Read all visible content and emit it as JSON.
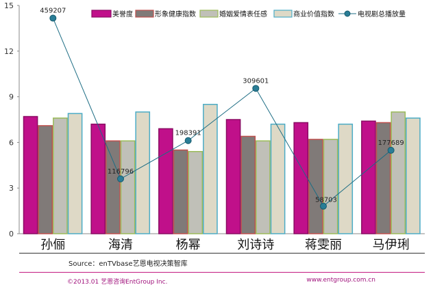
{
  "chart_data": {
    "type": "bar",
    "categories": [
      "孙俪",
      "海清",
      "杨幂",
      "刘诗诗",
      "蒋雯丽",
      "马伊琍"
    ],
    "ylim": [
      0,
      15
    ],
    "yticks": [
      "0",
      "3",
      "6",
      "9",
      "12",
      "15"
    ],
    "grid": false,
    "legend_position": "top",
    "series": [
      {
        "name": "美誉度",
        "color": "#c0108a",
        "values": [
          7.7,
          7.2,
          6.9,
          7.5,
          7.3,
          7.4
        ]
      },
      {
        "name": "形象健康指数",
        "color": "#807a78",
        "values": [
          7.1,
          6.1,
          5.5,
          6.4,
          6.2,
          7.3
        ]
      },
      {
        "name": "婚姻爱情表任感",
        "color": "#c0c0b8",
        "values": [
          7.6,
          6.1,
          5.4,
          6.1,
          6.2,
          8.0
        ]
      },
      {
        "name": "商业价值指数",
        "color": "#ded9c6",
        "values": [
          7.9,
          8.0,
          8.5,
          7.2,
          7.2,
          7.6
        ]
      }
    ],
    "line_series": {
      "name": "电视剧总播放量",
      "color": "#1d6d84",
      "values": [
        459207,
        116796,
        198391,
        309601,
        58703,
        177689
      ],
      "labels": [
        "459207",
        "116796",
        "198391",
        "309601",
        "58703",
        "177689"
      ]
    }
  },
  "footer": {
    "source": "Source：enTVbase艺恩电视决策智库",
    "copyright": "©2013.01  艺恩咨询EntGroup Inc.",
    "website": "www.entgroup.com.cn"
  }
}
